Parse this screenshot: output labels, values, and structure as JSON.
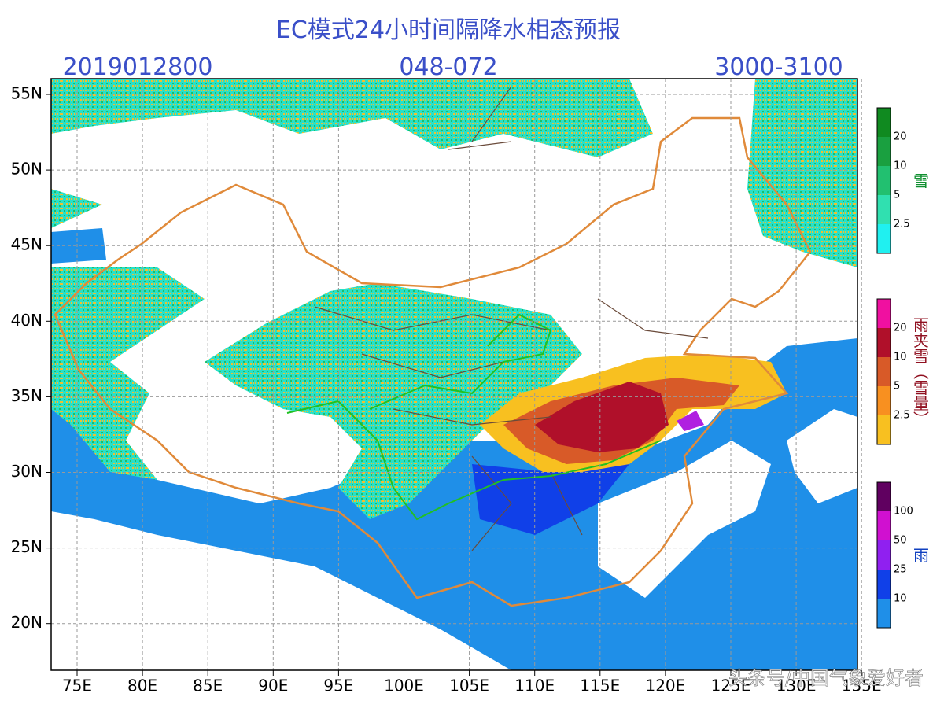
{
  "header": {
    "title": "EC模式24小时间隔降水相态预报",
    "init_time": "2019012800",
    "lead_hours": "048-072",
    "level": "3000-3100"
  },
  "map": {
    "lat_labels": [
      "55N",
      "50N",
      "45N",
      "40N",
      "35N",
      "30N",
      "25N",
      "20N"
    ],
    "lon_labels": [
      "75E",
      "80E",
      "85E",
      "90E",
      "95E",
      "100E",
      "105E",
      "110E",
      "115E",
      "120E",
      "125E",
      "130E",
      "135E"
    ]
  },
  "legends": [
    {
      "title": "雪",
      "labels": [
        "20",
        "10",
        "5",
        "2.5"
      ]
    },
    {
      "title": "雨夹雪（雪量）",
      "labels": [
        "20",
        "10",
        "5",
        "2.5"
      ]
    },
    {
      "title": "雨",
      "labels": [
        "100",
        "50",
        "25",
        "10"
      ]
    }
  ],
  "watermark": "头条号/中国气象爱好者"
}
